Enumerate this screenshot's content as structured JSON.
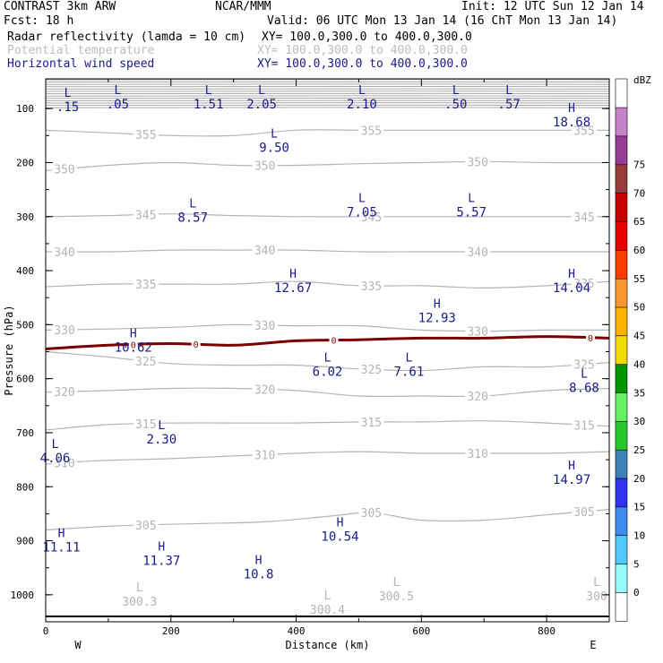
{
  "header": {
    "model": "CONTRAST  3km ARW",
    "center": "NCAR/MMM",
    "init": "Init: 12 UTC Sun 12 Jan 14",
    "fcst": "Fcst:   18 h",
    "valid": "Valid: 06 UTC Mon 13 Jan 14 (16 ChT Mon 13 Jan 14)",
    "fields": [
      {
        "name": "Radar reflectivity (lamda = 10 cm)",
        "xy": "XY= 100.0,300.0 to 400.0,300.0",
        "color": "#000000"
      },
      {
        "name": "Potential temperature",
        "xy": "XY= 100.0,300.0 to 400.0,300.0",
        "color": "#bdbdbd"
      },
      {
        "name": "Horizontal wind speed",
        "xy": "XY= 100.0,300.0 to 400.0,300.0",
        "color": "#1a1a8c"
      }
    ]
  },
  "chart_data": {
    "type": "contour",
    "xlabel": "Distance (km)",
    "ylabel": "Pressure (hPa)",
    "xlim": [
      0,
      900
    ],
    "ylim": [
      1050,
      45
    ],
    "x_ticks": [
      0,
      200,
      400,
      600,
      800
    ],
    "y_ticks": [
      100,
      200,
      300,
      400,
      500,
      600,
      700,
      800,
      900,
      1000
    ],
    "direction_labels": {
      "left": "W",
      "right": "E"
    },
    "colorbar": {
      "unit": "dBZ",
      "levels": [
        0,
        5,
        10,
        15,
        20,
        25,
        30,
        35,
        40,
        45,
        50,
        55,
        60,
        65,
        70,
        75
      ],
      "colors": [
        "#ffffff",
        "#96fafa",
        "#50c8fa",
        "#3c8cf0",
        "#3232f0",
        "#3c82b4",
        "#28c828",
        "#64f064",
        "#009600",
        "#f0dc00",
        "#fab400",
        "#fa9632",
        "#fa3c00",
        "#e60000",
        "#c80000",
        "#963c3c",
        "#963c96",
        "#c882c8",
        "#ffffff"
      ]
    },
    "theta_contours": [
      {
        "value": 300.3,
        "points": [
          [
            0,
            1040
          ],
          [
            900,
            1040
          ]
        ]
      },
      {
        "value": 305,
        "points": [
          [
            0,
            880
          ],
          [
            120,
            872
          ],
          [
            250,
            868
          ],
          [
            350,
            865
          ],
          [
            450,
            855
          ],
          [
            520,
            848
          ],
          [
            600,
            862
          ],
          [
            700,
            862
          ],
          [
            800,
            852
          ],
          [
            900,
            842
          ]
        ]
      },
      {
        "value": 310,
        "points": [
          [
            0,
            758
          ],
          [
            80,
            752
          ],
          [
            200,
            748
          ],
          [
            300,
            743
          ],
          [
            400,
            738
          ],
          [
            500,
            735
          ],
          [
            600,
            738
          ],
          [
            700,
            738
          ],
          [
            800,
            738
          ],
          [
            900,
            735
          ]
        ]
      },
      {
        "value": 315,
        "points": [
          [
            0,
            695
          ],
          [
            100,
            685
          ],
          [
            200,
            682
          ],
          [
            300,
            682
          ],
          [
            400,
            682
          ],
          [
            500,
            680
          ],
          [
            600,
            680
          ],
          [
            700,
            678
          ],
          [
            800,
            682
          ],
          [
            900,
            688
          ]
        ]
      },
      {
        "value": 320,
        "points": [
          [
            0,
            625
          ],
          [
            100,
            622
          ],
          [
            200,
            618
          ],
          [
            300,
            618
          ],
          [
            400,
            622
          ],
          [
            500,
            632
          ],
          [
            600,
            632
          ],
          [
            700,
            632
          ],
          [
            800,
            622
          ],
          [
            900,
            618
          ]
        ]
      },
      {
        "value": 325,
        "points": [
          [
            0,
            550
          ],
          [
            100,
            560
          ],
          [
            200,
            572
          ],
          [
            300,
            575
          ],
          [
            400,
            575
          ],
          [
            500,
            582
          ],
          [
            600,
            585
          ],
          [
            700,
            578
          ],
          [
            800,
            578
          ],
          [
            900,
            570
          ]
        ]
      },
      {
        "value": 330,
        "points": [
          [
            0,
            510
          ],
          [
            100,
            508
          ],
          [
            200,
            505
          ],
          [
            300,
            500
          ],
          [
            400,
            502
          ],
          [
            500,
            502
          ],
          [
            600,
            510
          ],
          [
            700,
            512
          ],
          [
            800,
            510
          ],
          [
            900,
            510
          ]
        ]
      },
      {
        "value": 335,
        "points": [
          [
            0,
            430
          ],
          [
            100,
            425
          ],
          [
            200,
            425
          ],
          [
            300,
            425
          ],
          [
            400,
            420
          ],
          [
            500,
            428
          ],
          [
            600,
            428
          ],
          [
            700,
            432
          ],
          [
            800,
            428
          ],
          [
            900,
            420
          ]
        ]
      },
      {
        "value": 340,
        "points": [
          [
            0,
            365
          ],
          [
            100,
            365
          ],
          [
            200,
            362
          ],
          [
            300,
            362
          ],
          [
            400,
            362
          ],
          [
            500,
            365
          ],
          [
            600,
            365
          ],
          [
            700,
            365
          ],
          [
            800,
            365
          ],
          [
            900,
            365
          ]
        ]
      },
      {
        "value": 345,
        "points": [
          [
            0,
            300
          ],
          [
            100,
            298
          ],
          [
            200,
            295
          ],
          [
            300,
            298
          ],
          [
            400,
            300
          ],
          [
            500,
            300
          ],
          [
            600,
            300
          ],
          [
            700,
            300
          ],
          [
            800,
            300
          ],
          [
            900,
            300
          ]
        ]
      },
      {
        "value": 350,
        "points": [
          [
            0,
            215
          ],
          [
            100,
            205
          ],
          [
            200,
            200
          ],
          [
            300,
            205
          ],
          [
            400,
            205
          ],
          [
            500,
            202
          ],
          [
            600,
            200
          ],
          [
            700,
            198
          ],
          [
            800,
            200
          ],
          [
            900,
            200
          ]
        ]
      },
      {
        "value": 355,
        "points": [
          [
            0,
            140
          ],
          [
            100,
            145
          ],
          [
            200,
            150
          ],
          [
            300,
            150
          ],
          [
            400,
            140
          ],
          [
            500,
            140
          ],
          [
            600,
            140
          ],
          [
            700,
            140
          ],
          [
            800,
            140
          ],
          [
            900,
            140
          ]
        ]
      }
    ],
    "reflectivity_zero_contour": {
      "value": 0,
      "points": [
        [
          0,
          545
        ],
        [
          100,
          538
        ],
        [
          200,
          535
        ],
        [
          300,
          538
        ],
        [
          400,
          530
        ],
        [
          500,
          528
        ],
        [
          600,
          525
        ],
        [
          700,
          525
        ],
        [
          800,
          522
        ],
        [
          900,
          525
        ]
      ]
    },
    "wind_extrema": [
      {
        "type": "L",
        "value": ".15",
        "x": 35,
        "p": 80
      },
      {
        "type": "L",
        "value": ".05",
        "x": 115,
        "p": 75
      },
      {
        "type": "L",
        "value": "1.51",
        "x": 260,
        "p": 75
      },
      {
        "type": "L",
        "value": "2.05",
        "x": 345,
        "p": 75
      },
      {
        "type": "L",
        "value": "2.10",
        "x": 505,
        "p": 75
      },
      {
        "type": "L",
        "value": ".50",
        "x": 655,
        "p": 75
      },
      {
        "type": "L",
        "value": ".57",
        "x": 740,
        "p": 75
      },
      {
        "type": "H",
        "value": "18.68",
        "x": 840,
        "p": 108
      },
      {
        "type": "L",
        "value": "9.50",
        "x": 365,
        "p": 155
      },
      {
        "type": "L",
        "value": "8.57",
        "x": 235,
        "p": 285
      },
      {
        "type": "L",
        "value": "7.05",
        "x": 505,
        "p": 275
      },
      {
        "type": "L",
        "value": "5.57",
        "x": 680,
        "p": 275
      },
      {
        "type": "H",
        "value": "12.67",
        "x": 395,
        "p": 415
      },
      {
        "type": "H",
        "value": "14.04",
        "x": 840,
        "p": 415
      },
      {
        "type": "H",
        "value": "12.93",
        "x": 625,
        "p": 470
      },
      {
        "type": "H",
        "value": "10.62",
        "x": 140,
        "p": 525
      },
      {
        "type": "L",
        "value": "6.02",
        "x": 450,
        "p": 570
      },
      {
        "type": "L",
        "value": "7.61",
        "x": 580,
        "p": 570
      },
      {
        "type": "L",
        "value": "8.68",
        "x": 860,
        "p": 600
      },
      {
        "type": "L",
        "value": "2.30",
        "x": 185,
        "p": 695
      },
      {
        "type": "L",
        "value": "4.06",
        "x": 15,
        "p": 730
      },
      {
        "type": "H",
        "value": "14.97",
        "x": 840,
        "p": 770
      },
      {
        "type": "H",
        "value": "10.54",
        "x": 470,
        "p": 875
      },
      {
        "type": "H",
        "value": "11.11",
        "x": 25,
        "p": 895
      },
      {
        "type": "H",
        "value": "11.37",
        "x": 185,
        "p": 920
      },
      {
        "type": "H",
        "value": "10.8",
        "x": 340,
        "p": 945
      }
    ],
    "theta_extrema": [
      {
        "type": "L",
        "value": "300.3",
        "x": 150,
        "p": 1000
      },
      {
        "type": "L",
        "value": "300.4",
        "x": 450,
        "p": 1015
      },
      {
        "type": "L",
        "value": "300.5",
        "x": 560,
        "p": 990
      },
      {
        "type": "L",
        "value": "300",
        "x": 880,
        "p": 990
      }
    ]
  }
}
